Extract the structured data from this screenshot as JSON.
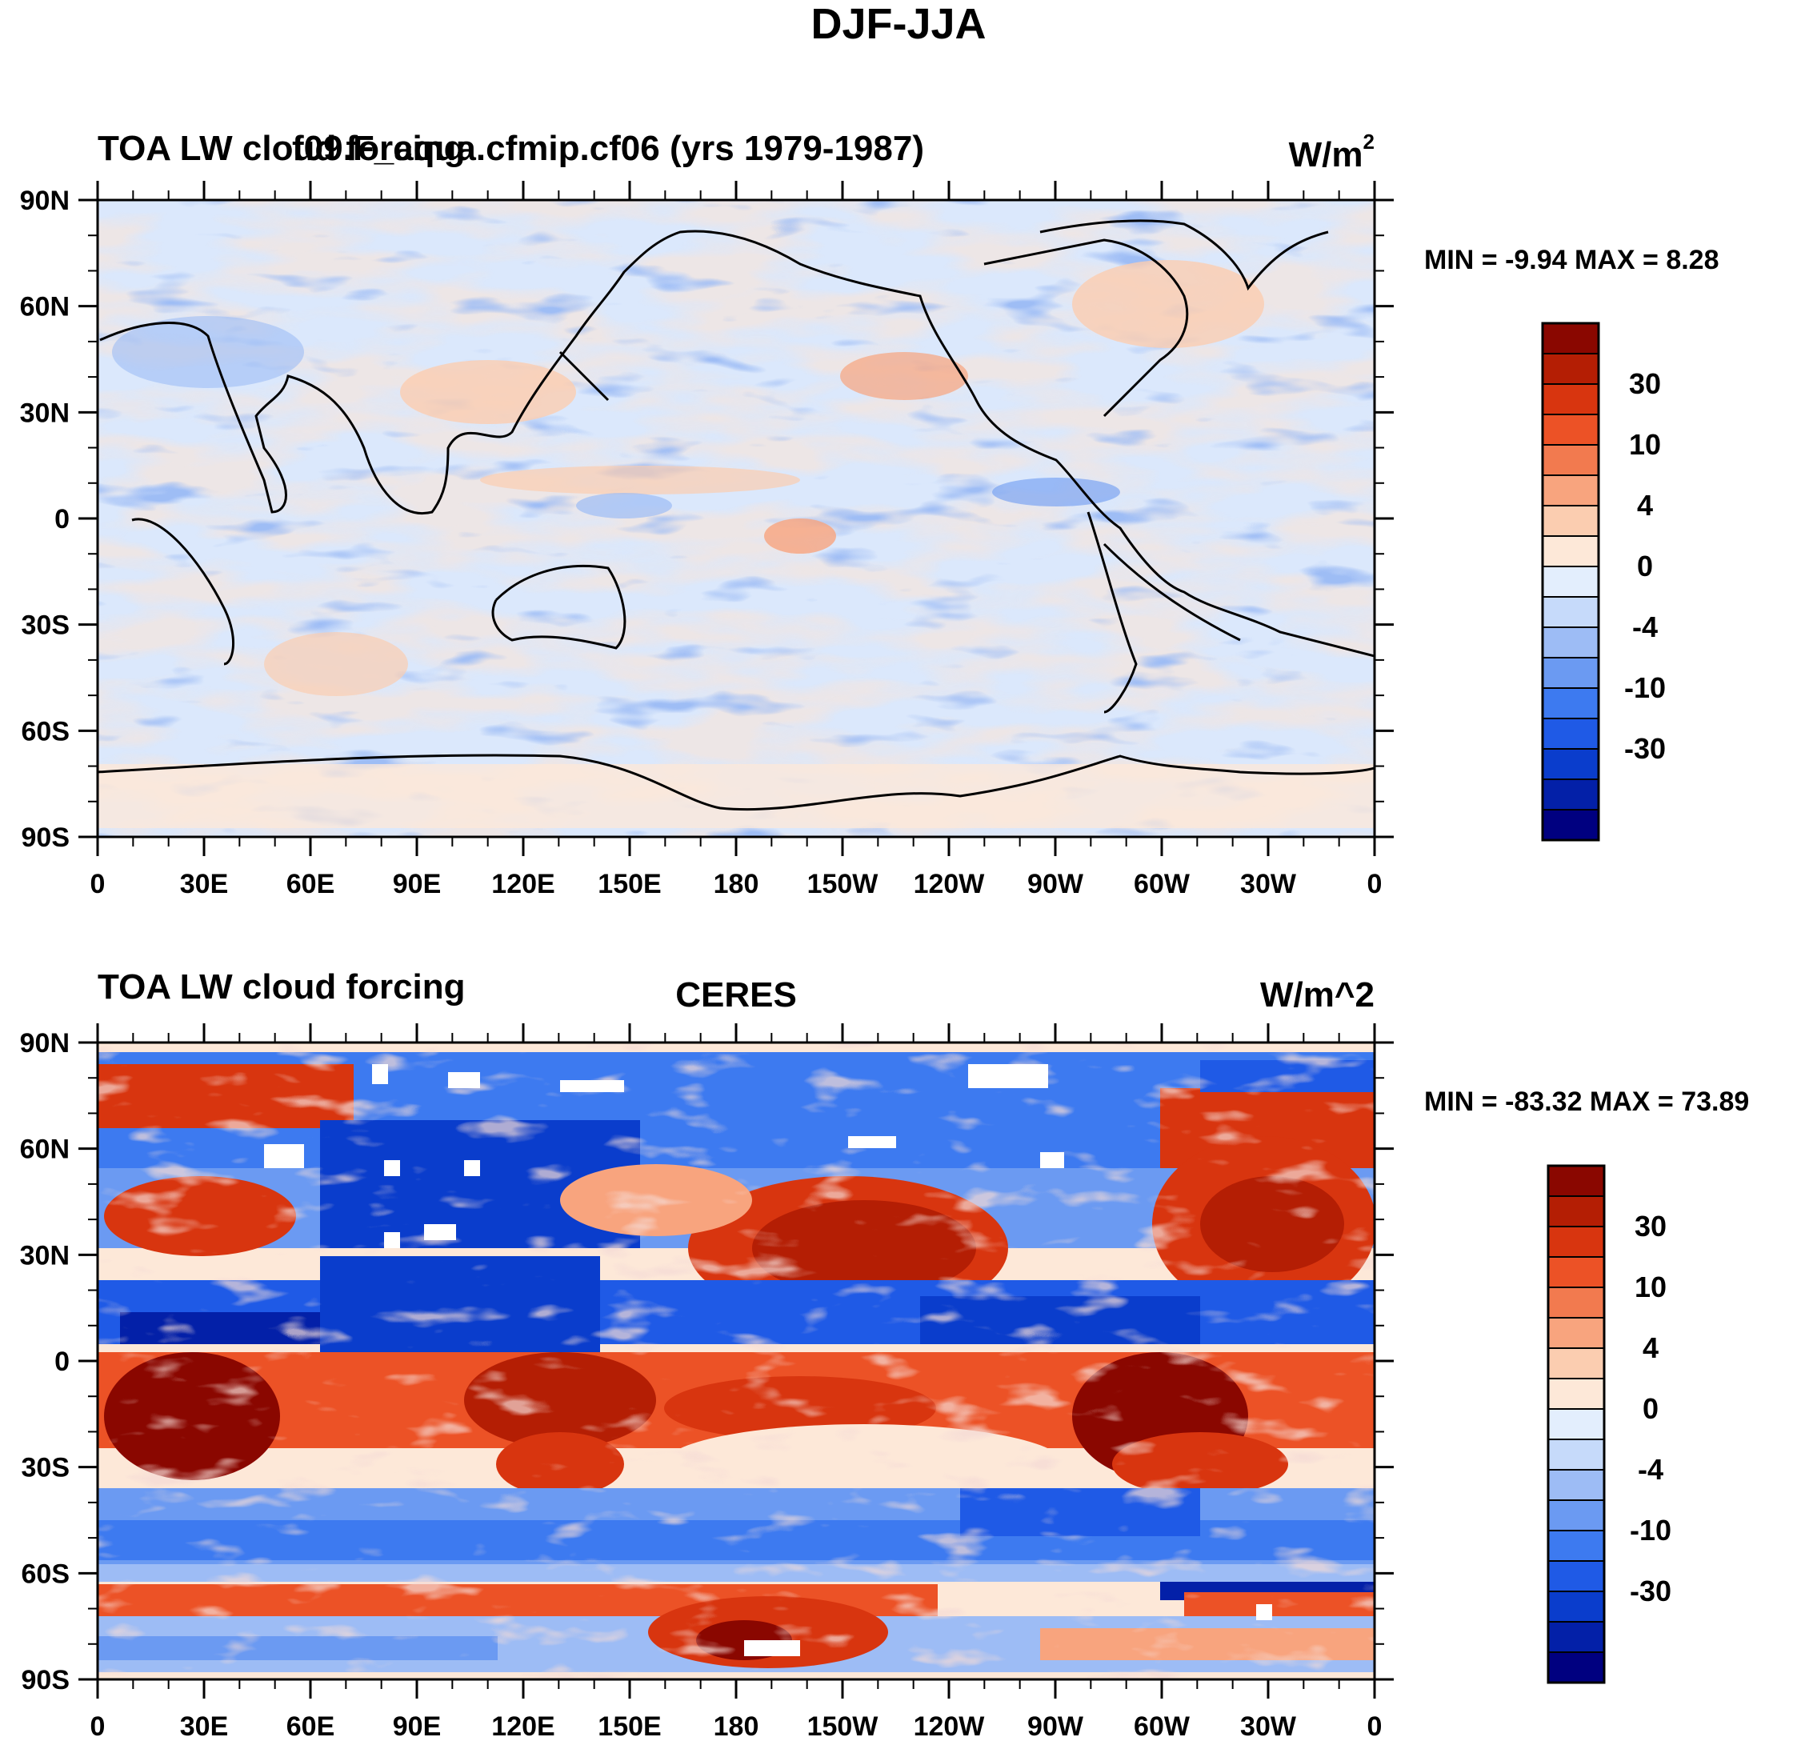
{
  "figure_title": "DJF-JJA",
  "colorbar": {
    "colors": [
      "#000080",
      "#0320a8",
      "#0a3dcc",
      "#1f5ae6",
      "#3d7af0",
      "#6b9af2",
      "#9dbcf5",
      "#c6dafa",
      "#e3eefd",
      "#fde8d8",
      "#fbcdb0",
      "#f8a47e",
      "#f27a4f",
      "#ec5226",
      "#d8350f",
      "#b41e04",
      "#8a0700"
    ],
    "labels": [
      "30",
      "10",
      "4",
      "0",
      "-4",
      "-10",
      "-30"
    ]
  },
  "chart_data": [
    {
      "type": "heatmap",
      "title_left": "TOA LW cloud forcing",
      "title_center": "f09.F_aqua.cfmip.cf06 (yrs 1979-1987)",
      "units": "W/m",
      "units_sup": "2",
      "min_max_text": "MIN =  -9.94 MAX =   8.28",
      "min": -9.94,
      "max": 8.28,
      "x_ticks": [
        "0",
        "30E",
        "60E",
        "90E",
        "120E",
        "150E",
        "180",
        "150W",
        "120W",
        "90W",
        "60W",
        "30W",
        "0"
      ],
      "y_ticks": [
        "90N",
        "60N",
        "30N",
        "0",
        "30S",
        "60S",
        "90S"
      ],
      "xlim": [
        0,
        360
      ],
      "ylim": [
        -90,
        90
      ],
      "contour_levels": [
        -50,
        -40,
        -30,
        -20,
        -10,
        -8,
        -4,
        -2,
        0,
        2,
        4,
        8,
        10,
        20,
        30,
        40,
        50
      ]
    },
    {
      "type": "heatmap",
      "title_left": "TOA LW cloud forcing",
      "title_center": "CERES",
      "units": "W/m^2",
      "units_sup": "",
      "min_max_text": "MIN = -83.32 MAX =  73.89",
      "min": -83.32,
      "max": 73.89,
      "x_ticks": [
        "0",
        "30E",
        "60E",
        "90E",
        "120E",
        "150E",
        "180",
        "150W",
        "120W",
        "90W",
        "60W",
        "30W",
        "0"
      ],
      "y_ticks": [
        "90N",
        "60N",
        "30N",
        "0",
        "30S",
        "60S",
        "90S"
      ],
      "xlim": [
        0,
        360
      ],
      "ylim": [
        -90,
        90
      ],
      "contour_levels": [
        -50,
        -40,
        -30,
        -20,
        -10,
        -8,
        -4,
        -2,
        0,
        2,
        4,
        8,
        10,
        20,
        30,
        40,
        50
      ]
    }
  ]
}
